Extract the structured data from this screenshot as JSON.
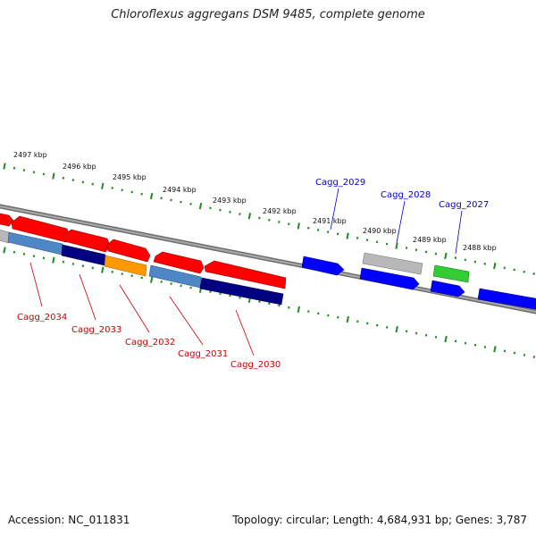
{
  "title": "Chloroflexus aggregans DSM 9485, complete genome",
  "footer": {
    "accession": "Accession: NC_011831",
    "summary": "Topology: circular; Length: 4,684,931 bp; Genes: 3,787"
  },
  "colors": {
    "backbone": "#888888",
    "tick": "#1e8c1e",
    "forward_label": "#0000cc",
    "reverse_label": "#cc0000",
    "red": "#ff0000",
    "steel_blue": "#4f86c6",
    "navy": "#000080",
    "orange": "#ff9900",
    "blue": "#0000ff",
    "gray": "#b8b8b8",
    "green": "#33cc33"
  },
  "scale_labels": [
    "2497 kbp",
    "2496 kbp",
    "2495 kbp",
    "2494 kbp",
    "2493 kbp",
    "2492 kbp",
    "2491 kbp",
    "2490 kbp",
    "2489 kbp",
    "2488 kbp"
  ],
  "forward_gene_labels": [
    "Cagg_2029",
    "Cagg_2028",
    "Cagg_2027"
  ],
  "reverse_gene_labels": [
    "Cagg_2034",
    "Cagg_2033",
    "Cagg_2032",
    "Cagg_2031",
    "Cagg_2030"
  ]
}
